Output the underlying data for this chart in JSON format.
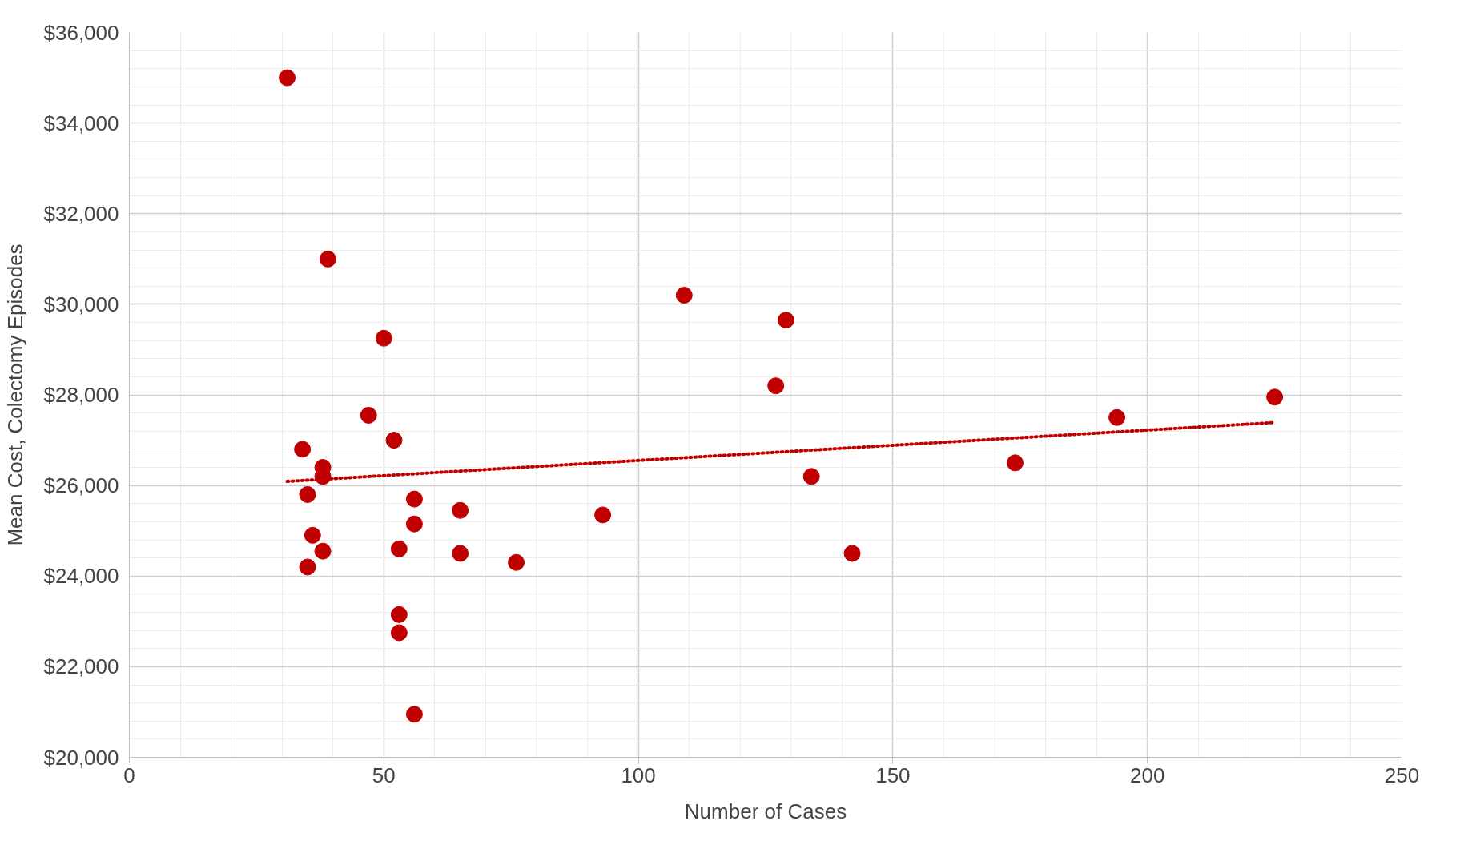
{
  "chart_data": {
    "type": "scatter",
    "xlabel": "Number of Cases",
    "ylabel": "Mean Cost, Colectomy Episodes",
    "xlim": [
      0,
      250
    ],
    "xticks": [
      0,
      50,
      100,
      150,
      200,
      250
    ],
    "ylim": [
      20000,
      36000
    ],
    "yticks": [
      {
        "value": 20000,
        "label": "$20,000"
      },
      {
        "value": 22000,
        "label": "$22,000"
      },
      {
        "value": 24000,
        "label": "$24,000"
      },
      {
        "value": 26000,
        "label": "$26,000"
      },
      {
        "value": 28000,
        "label": "$28,000"
      },
      {
        "value": 30000,
        "label": "$30,000"
      },
      {
        "value": 32000,
        "label": "$32,000"
      },
      {
        "value": 34000,
        "label": "$34,000"
      },
      {
        "value": 36000,
        "label": "$36,000"
      }
    ],
    "grid": true,
    "series": [
      {
        "color": "#c00000",
        "marker": "circle",
        "x": [
          31,
          39,
          109,
          129,
          50,
          127,
          47,
          194,
          225,
          52,
          34,
          38,
          38,
          174,
          134,
          35,
          56,
          65,
          56,
          93,
          36,
          38,
          53,
          65,
          142,
          76,
          35,
          53,
          53,
          56
        ],
        "values": [
          35000,
          31000,
          30200,
          29650,
          29250,
          28200,
          27550,
          27500,
          27950,
          27000,
          26800,
          26400,
          26200,
          26500,
          26200,
          25800,
          25700,
          25450,
          25150,
          25350,
          24900,
          24550,
          24600,
          24500,
          24500,
          24300,
          24200,
          23150,
          22750,
          20950
        ]
      },
      {
        "type": "line",
        "color": "#c00000",
        "line_style": "dotted",
        "x": [
          31,
          225
        ],
        "values": [
          26090,
          27390
        ]
      }
    ]
  }
}
